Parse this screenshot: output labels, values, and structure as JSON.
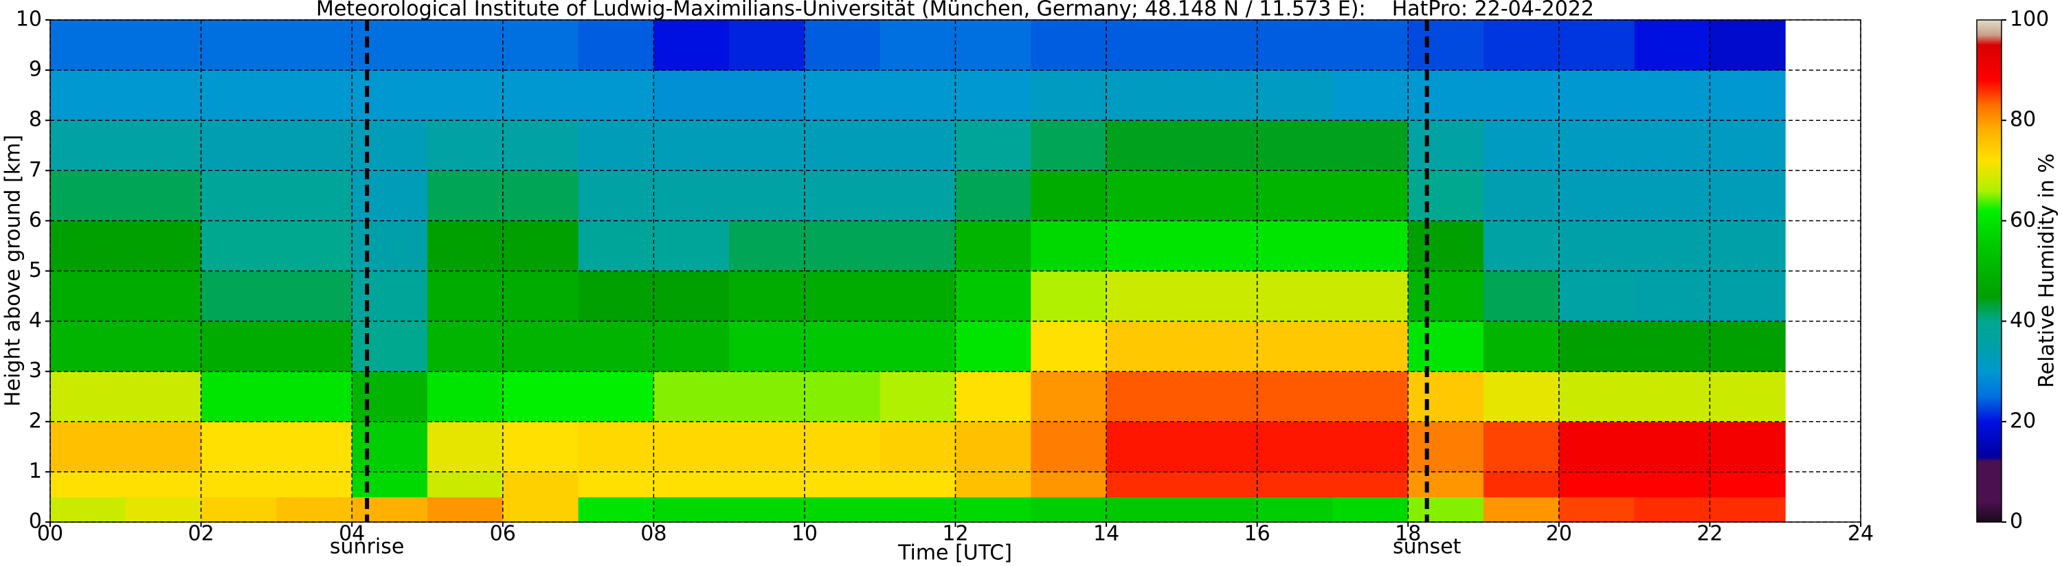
{
  "chart_data": {
    "type": "heatmap",
    "title": "Meteorological Institute of Ludwig-Maximilians-Universität (München, Germany; 48.148 N / 11.573 E):    HatPro: 22-04-2022",
    "xlabel": "Time [UTC]",
    "ylabel": "Height above ground [km]",
    "colorbar_label": "Relative Humidity in %",
    "xlim": [
      0,
      24
    ],
    "ylim": [
      0,
      10
    ],
    "xticks": [
      {
        "value": 0,
        "label": "00"
      },
      {
        "value": 2,
        "label": "02"
      },
      {
        "value": 4,
        "label": "04"
      },
      {
        "value": 6,
        "label": "06"
      },
      {
        "value": 8,
        "label": "08"
      },
      10,
      12,
      14,
      16,
      18,
      20,
      22,
      24
    ],
    "yticks": [
      0,
      1,
      2,
      3,
      4,
      5,
      6,
      7,
      8,
      9,
      10
    ],
    "grid": true,
    "clim": [
      0,
      100
    ],
    "cticks": [
      0,
      20,
      40,
      60,
      80,
      100
    ],
    "colormap": [
      {
        "value": 0,
        "color": "#1a0a1a"
      },
      {
        "value": 4,
        "color": "#4a1050"
      },
      {
        "value": 12,
        "color": "#4a1050"
      },
      {
        "value": 13,
        "color": "#0000a0"
      },
      {
        "value": 20,
        "color": "#0010e0"
      },
      {
        "value": 25,
        "color": "#0070e0"
      },
      {
        "value": 30,
        "color": "#0098d0"
      },
      {
        "value": 35,
        "color": "#00a0a8"
      },
      {
        "value": 40,
        "color": "#00a890"
      },
      {
        "value": 45,
        "color": "#00a000"
      },
      {
        "value": 55,
        "color": "#00c800"
      },
      {
        "value": 62,
        "color": "#00f000"
      },
      {
        "value": 66,
        "color": "#b0f000"
      },
      {
        "value": 72,
        "color": "#ffe000"
      },
      {
        "value": 78,
        "color": "#ffb000"
      },
      {
        "value": 83,
        "color": "#ff7000"
      },
      {
        "value": 88,
        "color": "#ff0000"
      },
      {
        "value": 95,
        "color": "#d80000"
      },
      {
        "value": 97,
        "color": "#c8a088"
      },
      {
        "value": 100,
        "color": "#e0dcc8"
      }
    ],
    "x_edges": [
      0,
      1,
      2,
      3,
      4,
      5,
      6,
      7,
      8,
      9,
      10,
      11,
      12,
      13,
      14,
      15,
      16,
      17,
      18,
      19,
      20,
      21,
      22,
      23
    ],
    "y_edges": [
      0,
      0.5,
      1,
      2,
      3,
      4,
      5,
      6,
      7,
      8,
      9,
      10
    ],
    "values": [
      [
        68,
        70,
        74,
        76,
        78,
        80,
        74,
        60,
        58,
        58,
        58,
        58,
        58,
        56,
        55,
        55,
        56,
        58,
        65,
        80,
        85,
        86,
        86
      ],
      [
        72,
        72,
        72,
        72,
        58,
        68,
        74,
        72,
        72,
        72,
        72,
        72,
        76,
        80,
        86,
        86,
        86,
        86,
        80,
        86,
        88,
        88,
        88
      ],
      [
        76,
        76,
        72,
        72,
        56,
        70,
        72,
        73,
        73,
        73,
        73,
        74,
        76,
        82,
        87,
        87,
        87,
        87,
        82,
        85,
        90,
        90,
        90
      ],
      [
        68,
        68,
        60,
        60,
        50,
        60,
        62,
        62,
        65,
        65,
        65,
        66,
        72,
        80,
        84,
        84,
        84,
        84,
        75,
        70,
        68,
        68,
        68
      ],
      [
        50,
        50,
        48,
        48,
        40,
        50,
        50,
        50,
        50,
        55,
        55,
        55,
        60,
        72,
        75,
        75,
        75,
        75,
        60,
        50,
        45,
        45,
        45
      ],
      [
        48,
        48,
        42,
        42,
        38,
        48,
        48,
        45,
        45,
        48,
        48,
        48,
        55,
        66,
        68,
        68,
        68,
        68,
        50,
        42,
        36,
        35,
        35
      ],
      [
        45,
        45,
        40,
        40,
        35,
        45,
        45,
        38,
        38,
        42,
        42,
        42,
        50,
        58,
        60,
        60,
        60,
        60,
        45,
        36,
        35,
        35,
        35
      ],
      [
        42,
        42,
        38,
        38,
        33,
        42,
        42,
        36,
        36,
        36,
        36,
        36,
        42,
        48,
        50,
        50,
        50,
        50,
        40,
        34,
        33,
        33,
        33
      ],
      [
        36,
        36,
        34,
        34,
        33,
        36,
        36,
        33,
        33,
        33,
        33,
        33,
        38,
        42,
        44,
        44,
        44,
        44,
        36,
        32,
        32,
        32,
        32
      ],
      [
        30,
        30,
        30,
        30,
        30,
        30,
        30,
        30,
        29,
        29,
        30,
        30,
        30,
        32,
        32,
        32,
        32,
        30,
        30,
        30,
        30,
        30,
        30
      ],
      [
        25,
        25,
        25,
        25,
        25,
        25,
        25,
        24,
        20,
        21,
        24,
        25,
        25,
        24,
        24,
        24,
        24,
        24,
        23,
        22,
        22,
        20,
        18
      ]
    ],
    "annotations": [
      {
        "label": "sunrise",
        "x": 4.2
      },
      {
        "label": "sunset",
        "x": 18.25
      }
    ]
  }
}
